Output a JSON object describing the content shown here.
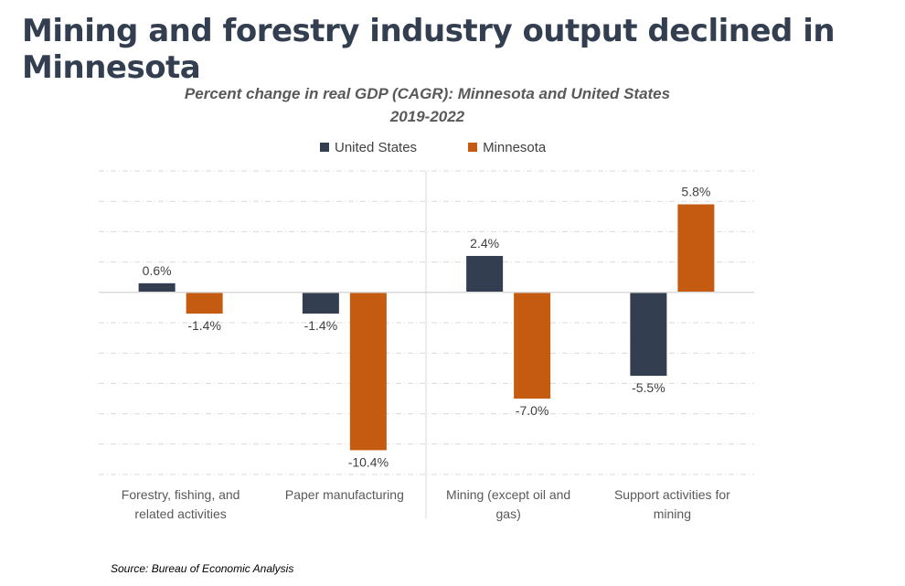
{
  "header": {
    "title": "Mining and forestry industry output declined in Minnesota"
  },
  "chart_data": {
    "type": "bar",
    "title": "Percent change in real GDP (CAGR): Minnesota and United States",
    "subtitle": "2019-2022",
    "categories": [
      [
        "Forestry, fishing, and",
        "related activities"
      ],
      [
        "Paper manufacturing"
      ],
      [
        "Mining (except oil and",
        "gas)"
      ],
      [
        "Support activities for",
        "mining"
      ]
    ],
    "series": [
      {
        "name": "United States",
        "color": "#333f50",
        "values": [
          0.6,
          -1.4,
          2.4,
          -5.5
        ],
        "labels": [
          "0.6%",
          "-1.4%",
          "2.4%",
          "-5.5%"
        ]
      },
      {
        "name": "Minnesota",
        "color": "#c55a11",
        "values": [
          -1.4,
          -10.4,
          -7.0,
          5.8
        ],
        "labels": [
          "-1.4%",
          "-10.4%",
          "-7.0%",
          "5.8%"
        ]
      }
    ],
    "ylim": [
      -12,
      8
    ],
    "ytick_step": 2,
    "grid": true,
    "legend": "top-center",
    "xlabel": "",
    "ylabel": ""
  },
  "footer": {
    "source": "Source: Bureau of Economic Analysis"
  }
}
